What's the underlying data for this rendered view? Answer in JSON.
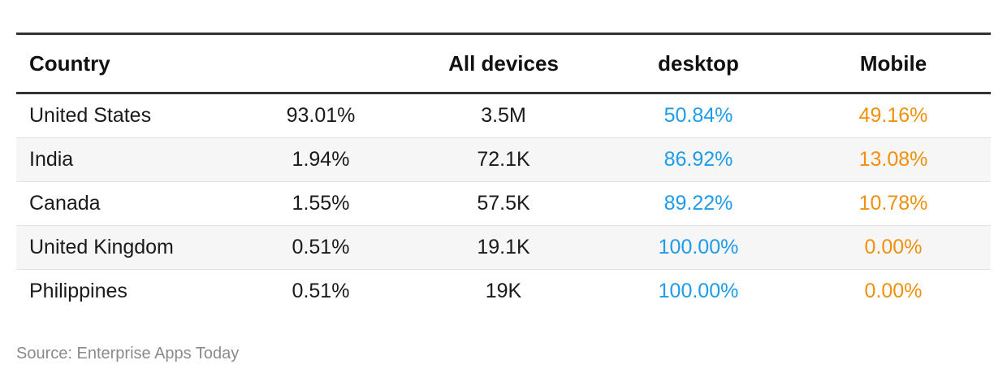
{
  "chart_data": {
    "type": "table",
    "columns": [
      "Country",
      "",
      "All devices",
      "desktop",
      "Mobile"
    ],
    "rows": [
      {
        "country": "United States",
        "share": "93.01%",
        "all_devices": "3.5M",
        "desktop": "50.84%",
        "mobile": "49.16%"
      },
      {
        "country": "India",
        "share": "1.94%",
        "all_devices": "72.1K",
        "desktop": "86.92%",
        "mobile": "13.08%"
      },
      {
        "country": "Canada",
        "share": "1.55%",
        "all_devices": "57.5K",
        "desktop": "89.22%",
        "mobile": "10.78%"
      },
      {
        "country": "United Kingdom",
        "share": "0.51%",
        "all_devices": "19.1K",
        "desktop": "100.00%",
        "mobile": "0.00%"
      },
      {
        "country": "Philippines",
        "share": "0.51%",
        "all_devices": "19K",
        "desktop": "100.00%",
        "mobile": "0.00%"
      }
    ]
  },
  "colors": {
    "desktop": "#1e9be9",
    "mobile": "#f0900d",
    "rule": "#333333",
    "stripe": "#f6f6f6"
  },
  "source": "Source: Enterprise Apps Today"
}
